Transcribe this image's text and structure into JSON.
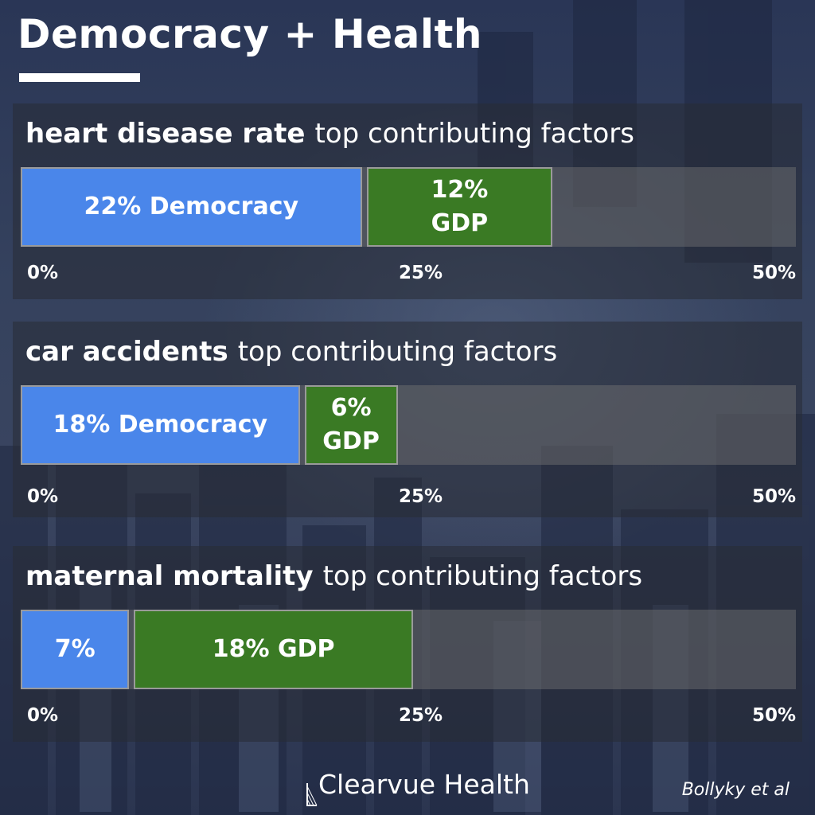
{
  "title": "Democracy + Health",
  "chart_data": [
    {
      "type": "bar",
      "title_strong": "heart disease rate",
      "title_light": "top contributing factors",
      "xlim": [
        0,
        50
      ],
      "ticks": [
        "0%",
        "25%",
        "50%"
      ],
      "series": [
        {
          "name": "Democracy",
          "value": 22,
          "label_lines": [
            "22% Democracy"
          ]
        },
        {
          "name": "GDP",
          "value": 12,
          "label_lines": [
            "12%",
            "GDP"
          ]
        }
      ]
    },
    {
      "type": "bar",
      "title_strong": "car accidents",
      "title_light": "top contributing factors",
      "xlim": [
        0,
        50
      ],
      "ticks": [
        "0%",
        "25%",
        "50%"
      ],
      "series": [
        {
          "name": "Democracy",
          "value": 18,
          "label_lines": [
            "18% Democracy"
          ]
        },
        {
          "name": "GDP",
          "value": 6,
          "label_lines": [
            "6%",
            "GDP"
          ]
        }
      ]
    },
    {
      "type": "bar",
      "title_strong": "maternal mortality",
      "title_light": "top contributing factors",
      "xlim": [
        0,
        50
      ],
      "ticks": [
        "0%",
        "25%",
        "50%"
      ],
      "series": [
        {
          "name": "Democracy",
          "value": 7,
          "label_lines": [
            "7%"
          ]
        },
        {
          "name": "GDP",
          "value": 18,
          "label_lines": [
            "18% GDP"
          ]
        }
      ]
    }
  ],
  "colors": {
    "democracy": "#4a86ea",
    "gdp": "#3a7a24"
  },
  "footer": {
    "brand": "Clearvue Health",
    "credit": "Bollyky et al"
  }
}
